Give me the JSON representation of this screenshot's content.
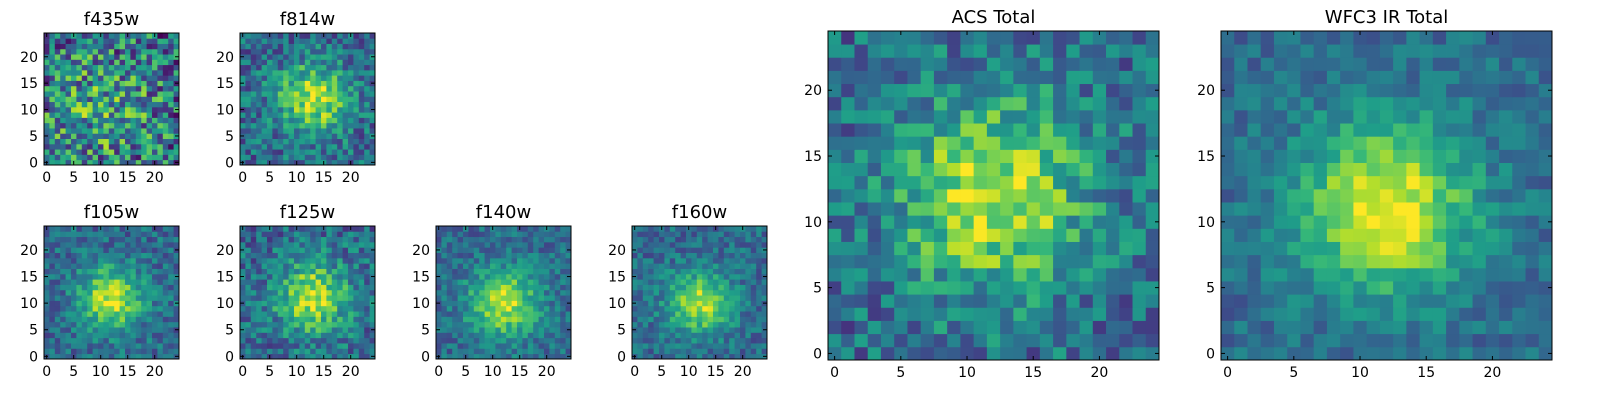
{
  "chart_data": [
    {
      "type": "heatmap",
      "title": "f435w",
      "shape": [
        25,
        25
      ],
      "xlim": [
        0,
        24
      ],
      "ylim": [
        0,
        24
      ],
      "xticks": [
        "0",
        "5",
        "10",
        "15",
        "20"
      ],
      "yticks": [
        "0",
        "5",
        "10",
        "15",
        "20"
      ],
      "colormap": "viridis",
      "peak": [
        10,
        10
      ],
      "peak_width": 8,
      "noise": 0.55,
      "seed": 435,
      "strength": 0.35
    },
    {
      "type": "heatmap",
      "title": "f814w",
      "shape": [
        25,
        25
      ],
      "xlim": [
        0,
        24
      ],
      "ylim": [
        0,
        24
      ],
      "xticks": [
        "0",
        "5",
        "10",
        "15",
        "20"
      ],
      "yticks": [
        "0",
        "5",
        "10",
        "15",
        "20"
      ],
      "colormap": "viridis",
      "peak": [
        13,
        12
      ],
      "peak_width": 4.5,
      "noise": 0.32,
      "seed": 814,
      "strength": 0.85
    },
    {
      "type": "heatmap",
      "title": "f105w",
      "shape": [
        25,
        25
      ],
      "xlim": [
        0,
        24
      ],
      "ylim": [
        0,
        24
      ],
      "xticks": [
        "0",
        "5",
        "10",
        "15",
        "20"
      ],
      "yticks": [
        "0",
        "5",
        "10",
        "15",
        "20"
      ],
      "colormap": "viridis",
      "peak": [
        12,
        11
      ],
      "peak_width": 4,
      "noise": 0.25,
      "seed": 105,
      "strength": 0.9
    },
    {
      "type": "heatmap",
      "title": "f125w",
      "shape": [
        25,
        25
      ],
      "xlim": [
        0,
        24
      ],
      "ylim": [
        0,
        24
      ],
      "xticks": [
        "0",
        "5",
        "10",
        "15",
        "20"
      ],
      "yticks": [
        "0",
        "5",
        "10",
        "15",
        "20"
      ],
      "colormap": "viridis",
      "peak": [
        13,
        11
      ],
      "peak_width": 4.5,
      "noise": 0.3,
      "seed": 125,
      "strength": 0.9
    },
    {
      "type": "heatmap",
      "title": "f140w",
      "shape": [
        25,
        25
      ],
      "xlim": [
        0,
        24
      ],
      "ylim": [
        0,
        24
      ],
      "xticks": [
        "0",
        "5",
        "10",
        "15",
        "20"
      ],
      "yticks": [
        "0",
        "5",
        "10",
        "15",
        "20"
      ],
      "colormap": "viridis",
      "peak": [
        12,
        10
      ],
      "peak_width": 4.5,
      "noise": 0.22,
      "seed": 140,
      "strength": 0.85
    },
    {
      "type": "heatmap",
      "title": "f160w",
      "shape": [
        25,
        25
      ],
      "xlim": [
        0,
        24
      ],
      "ylim": [
        0,
        24
      ],
      "xticks": [
        "0",
        "5",
        "10",
        "15",
        "20"
      ],
      "yticks": [
        "0",
        "5",
        "10",
        "15",
        "20"
      ],
      "colormap": "viridis",
      "peak": [
        12,
        10
      ],
      "peak_width": 4,
      "noise": 0.22,
      "seed": 160,
      "strength": 0.85
    },
    {
      "type": "heatmap",
      "title": "ACS Total",
      "shape": [
        25,
        25
      ],
      "xlim": [
        0,
        24
      ],
      "ylim": [
        0,
        24
      ],
      "xticks": [
        "0",
        "5",
        "10",
        "15",
        "20"
      ],
      "yticks": [
        "0",
        "5",
        "10",
        "15",
        "20"
      ],
      "colormap": "viridis",
      "peak": [
        12,
        12
      ],
      "peak_width": 5,
      "noise": 0.3,
      "seed": 900,
      "strength": 0.9
    },
    {
      "type": "heatmap",
      "title": "WFC3 IR Total",
      "shape": [
        25,
        25
      ],
      "xlim": [
        0,
        24
      ],
      "ylim": [
        0,
        24
      ],
      "xticks": [
        "0",
        "5",
        "10",
        "15",
        "20"
      ],
      "yticks": [
        "0",
        "5",
        "10",
        "15",
        "20"
      ],
      "colormap": "viridis",
      "peak": [
        12,
        11
      ],
      "peak_width": 4.5,
      "noise": 0.18,
      "seed": 1000,
      "strength": 1.0
    }
  ],
  "colors": {
    "viridis": [
      "#440154",
      "#482878",
      "#3e4989",
      "#31688e",
      "#26828e",
      "#1f9e89",
      "#35b779",
      "#6ece58",
      "#b5de2b",
      "#fde725"
    ]
  }
}
